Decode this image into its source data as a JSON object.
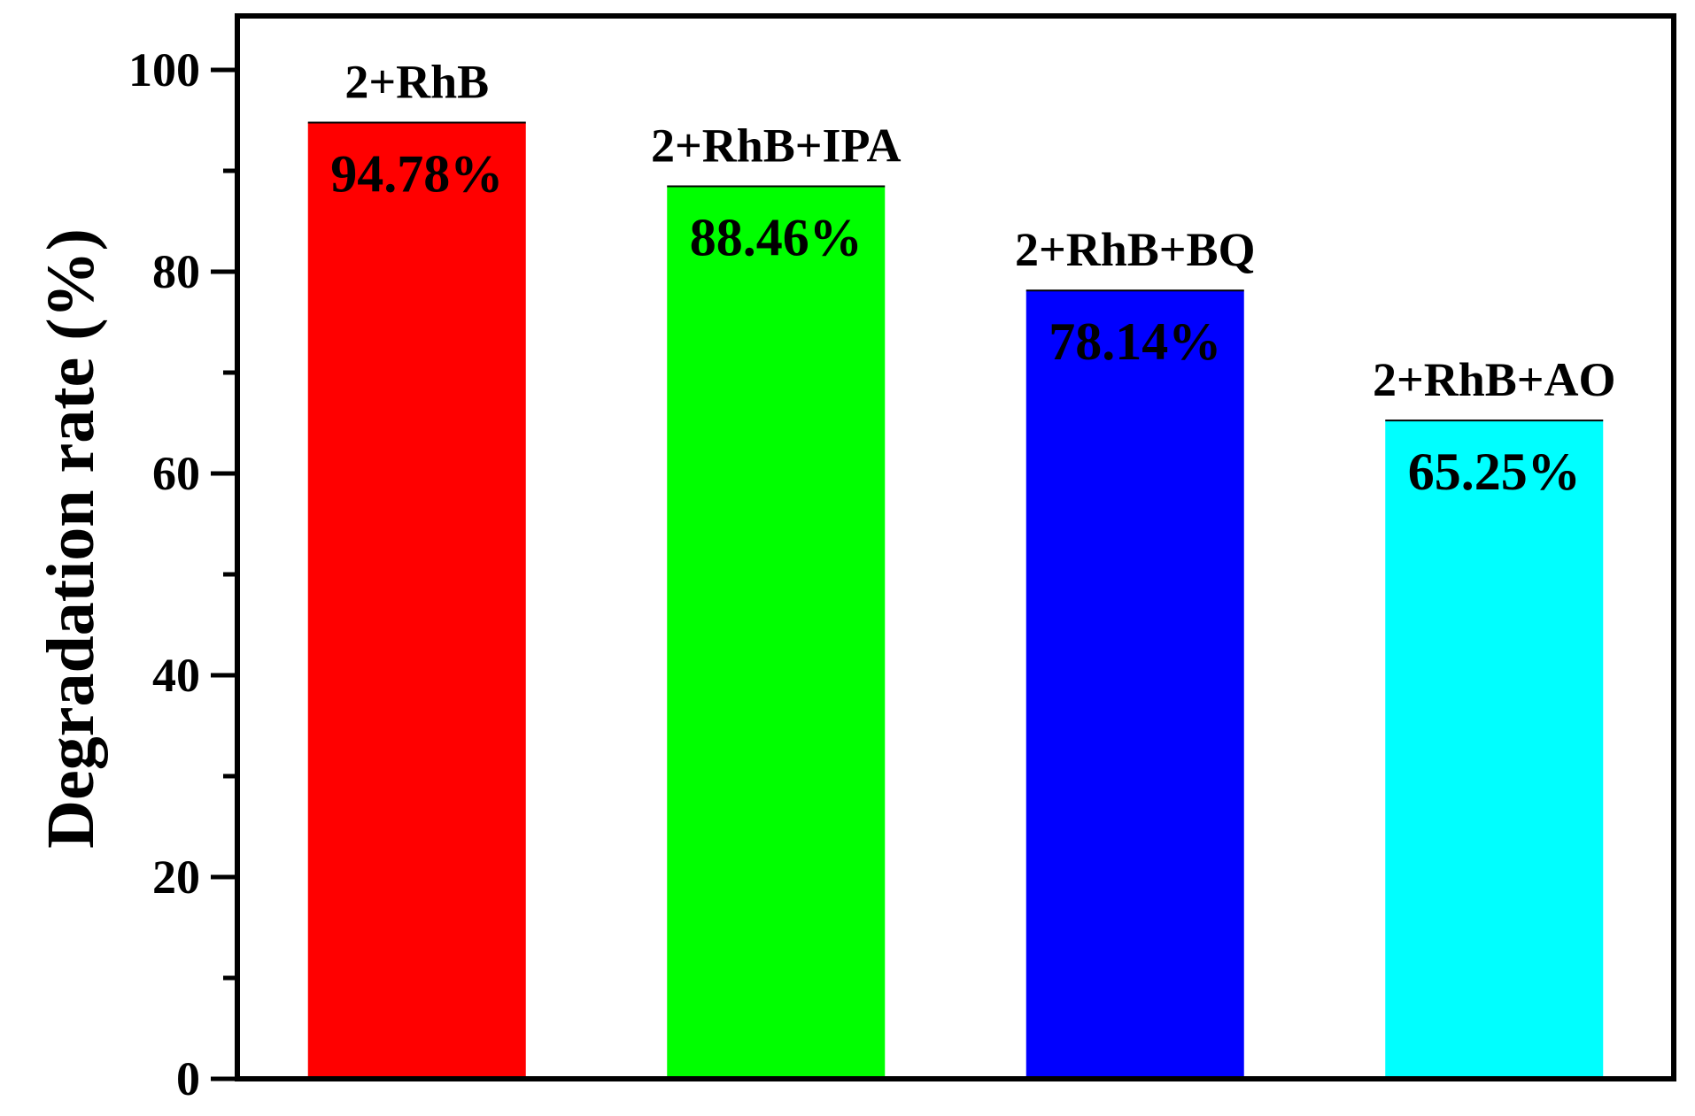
{
  "chart_data": {
    "type": "bar",
    "categories": [
      "2+RhB",
      "2+RhB+IPA",
      "2+RhB+BQ",
      "2+RhB+AO"
    ],
    "values": [
      94.78,
      88.46,
      78.14,
      65.25
    ],
    "value_labels": [
      "94.78%",
      "88.46%",
      "78.14%",
      "65.25%"
    ],
    "colors": [
      "#ff0000",
      "#00ff00",
      "#0000ff",
      "#00ffff"
    ],
    "xlabel": "",
    "ylabel": "Degradation rate (%)",
    "ylim": [
      0,
      100
    ],
    "yticks": [
      0,
      20,
      40,
      60,
      80,
      100
    ],
    "yminor_ticks": [
      10,
      30,
      50,
      70,
      90
    ],
    "grid": false,
    "legend": "none"
  }
}
